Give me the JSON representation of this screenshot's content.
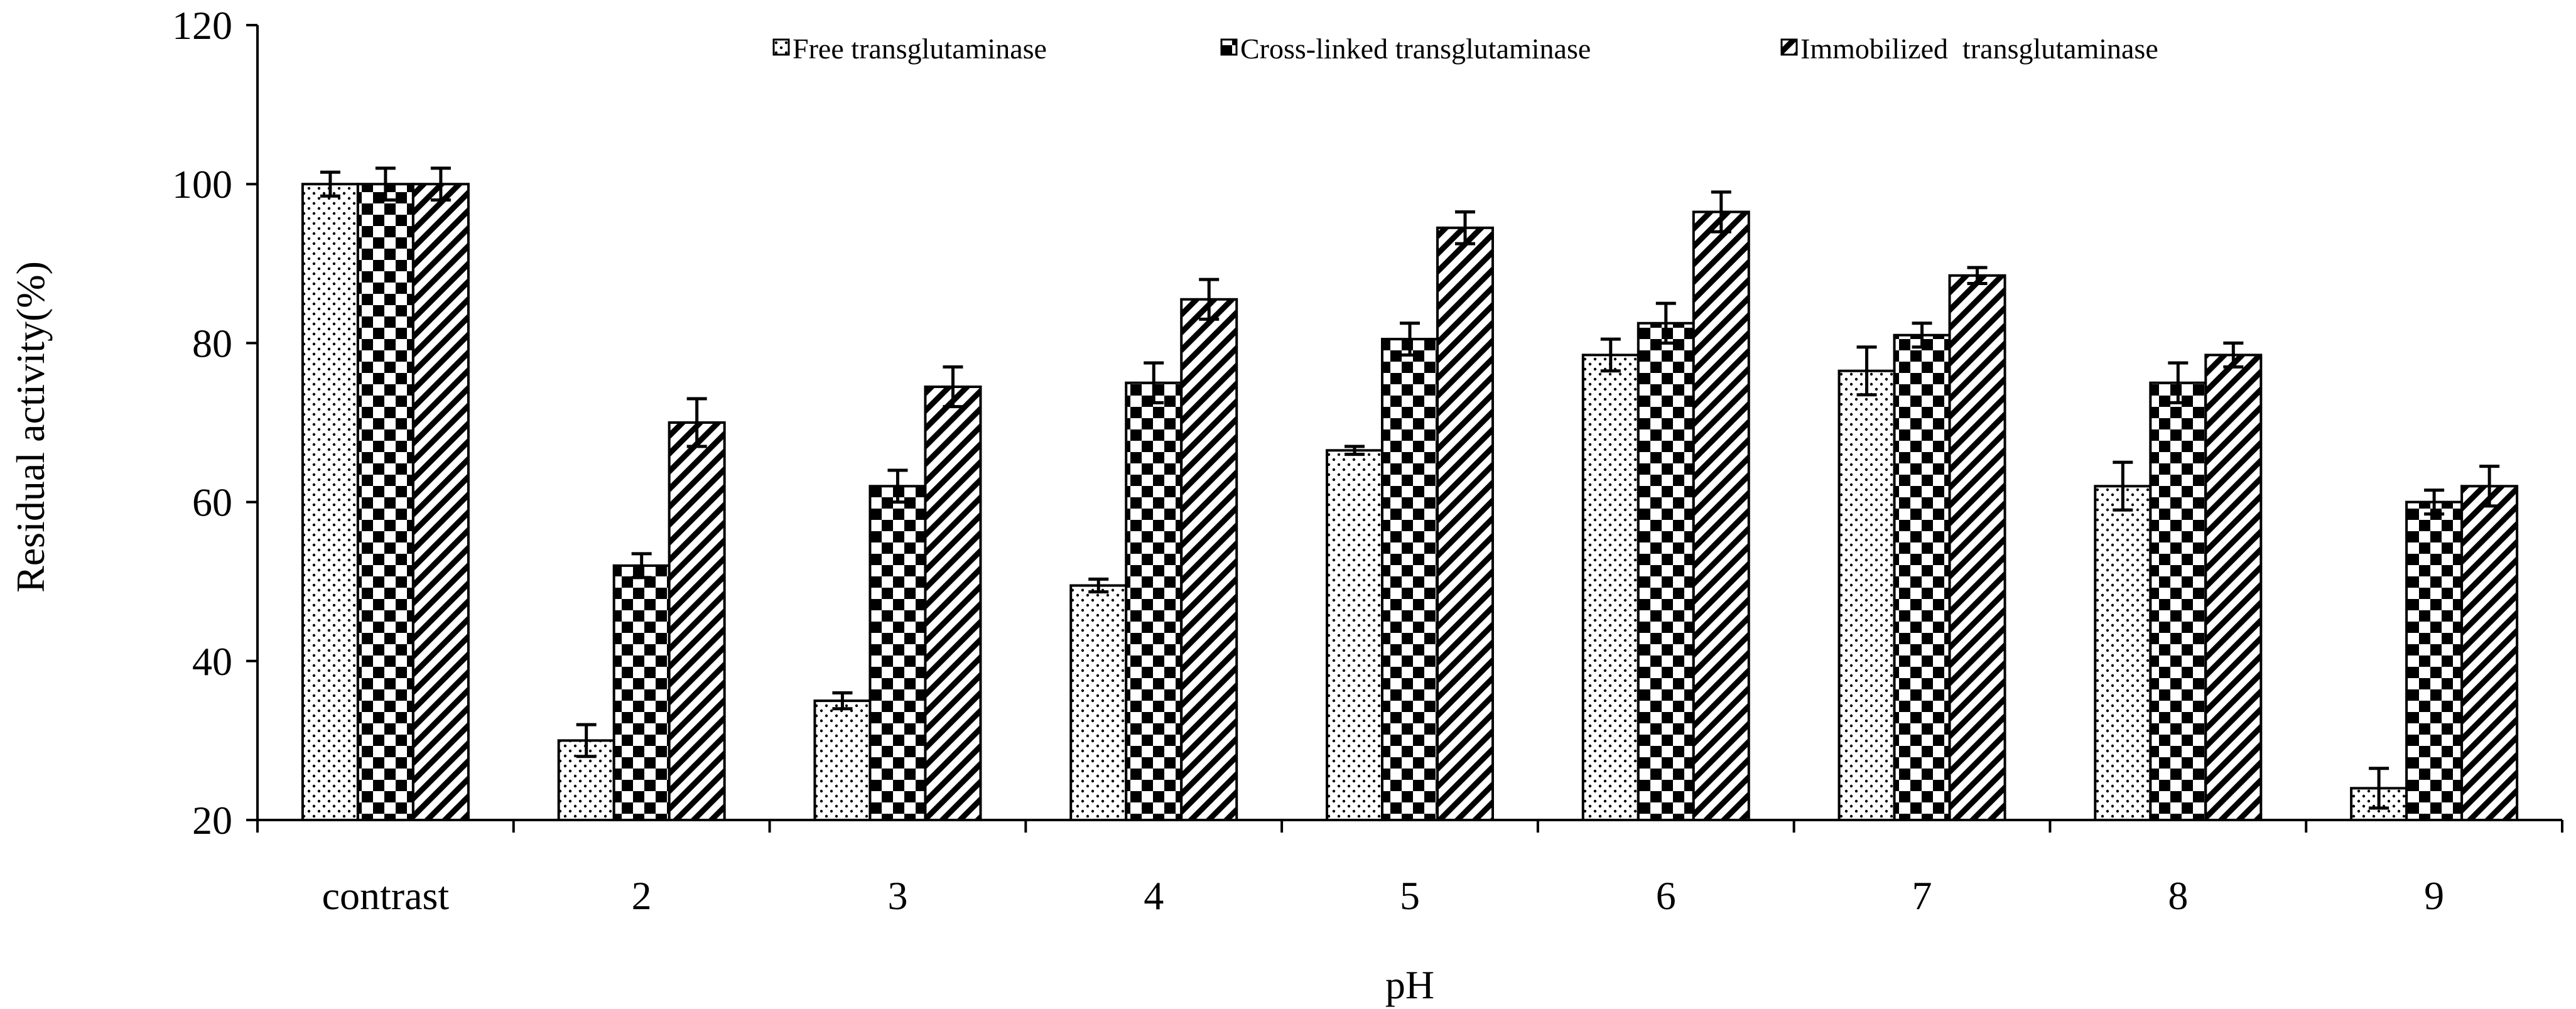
{
  "chart_data": {
    "type": "bar",
    "title": "",
    "xlabel": "pH",
    "ylabel": "Residual activity(%)",
    "ylim": [
      20,
      120
    ],
    "yticks": [
      20,
      40,
      60,
      80,
      100,
      120
    ],
    "categories": [
      "contrast",
      "2",
      "3",
      "4",
      "5",
      "6",
      "7",
      "8",
      "9"
    ],
    "series": [
      {
        "name": "Free transglutaminase",
        "pattern": "dots",
        "values": [
          100,
          30,
          35,
          49.5,
          66.5,
          78.5,
          76.5,
          62,
          24
        ],
        "errors": [
          1.5,
          2,
          1,
          0.8,
          0.5,
          2,
          3,
          3,
          2.5
        ]
      },
      {
        "name": "Cross-linked transglutaminase",
        "pattern": "checker",
        "values": [
          100,
          52,
          62,
          75,
          80.5,
          82.5,
          81,
          75,
          60
        ],
        "errors": [
          2,
          1.5,
          2,
          2.5,
          2,
          2.5,
          1.5,
          2.5,
          1.5
        ]
      },
      {
        "name": "Immobilized  transglutaminase",
        "pattern": "hatch",
        "values": [
          100,
          70,
          74.5,
          85.5,
          94.5,
          96.5,
          88.5,
          78.5,
          62
        ],
        "errors": [
          2,
          3,
          2.5,
          2.5,
          2,
          2.5,
          1,
          1.5,
          2.5
        ]
      }
    ],
    "grid": false,
    "legend_position": "top-right"
  }
}
